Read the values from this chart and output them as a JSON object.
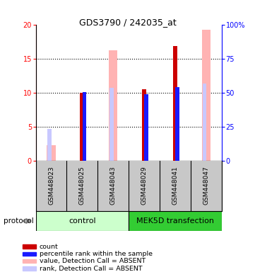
{
  "title": "GDS3790 / 242035_at",
  "samples": [
    "GSM448023",
    "GSM448025",
    "GSM448043",
    "GSM448029",
    "GSM448041",
    "GSM448047"
  ],
  "count_values": [
    null,
    10.0,
    null,
    10.5,
    16.8,
    null
  ],
  "percentile_values": [
    null,
    10.05,
    null,
    9.7,
    10.8,
    null
  ],
  "absent_value_values": [
    2.2,
    null,
    16.2,
    null,
    null,
    19.2
  ],
  "absent_rank_values": [
    4.6,
    null,
    10.7,
    null,
    null,
    11.3
  ],
  "ylim_left": [
    0,
    20
  ],
  "ylim_right": [
    0,
    100
  ],
  "yticks_left": [
    0,
    5,
    10,
    15,
    20
  ],
  "yticks_right": [
    0,
    25,
    50,
    75,
    100
  ],
  "yticklabels_right": [
    "0",
    "25",
    "50",
    "75",
    "100%"
  ],
  "color_count": "#cc0000",
  "color_percentile": "#1a1aff",
  "color_absent_value": "#ffb3b3",
  "color_absent_rank": "#c8c8ff",
  "color_control_bg": "#ccffcc",
  "color_mek_bg": "#33cc33",
  "legend_items": [
    {
      "color": "#cc0000",
      "label": "count"
    },
    {
      "color": "#1a1aff",
      "label": "percentile rank within the sample"
    },
    {
      "color": "#ffb3b3",
      "label": "value, Detection Call = ABSENT"
    },
    {
      "color": "#c8c8ff",
      "label": "rank, Detection Call = ABSENT"
    }
  ]
}
